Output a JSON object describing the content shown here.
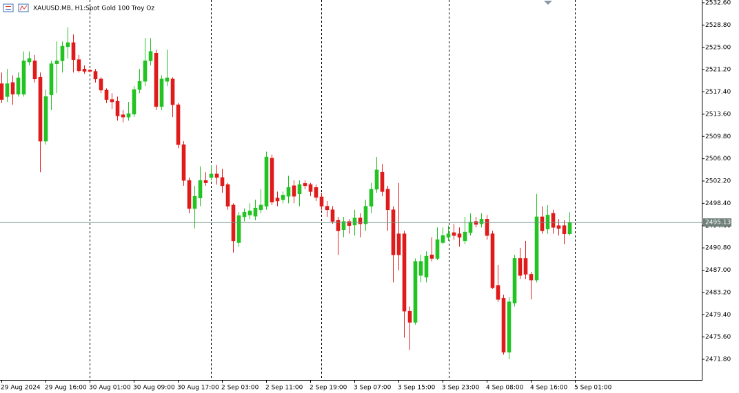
{
  "chart_data": {
    "type": "candlestick",
    "title": "XAUUSD.MB, H1:",
    "subtitle": "Spot Gold 100 Troy Oz",
    "up_color": "#22c322",
    "down_color": "#e01b1b",
    "grid": false,
    "ylim": [
      2468.28,
      2533.07
    ],
    "yticks": [
      {
        "value": 2532.6,
        "label": "2532.60"
      },
      {
        "value": 2528.8,
        "label": "2528.80"
      },
      {
        "value": 2525.0,
        "label": "2525.00"
      },
      {
        "value": 2521.2,
        "label": "2521.20"
      },
      {
        "value": 2517.4,
        "label": "2517.40"
      },
      {
        "value": 2513.6,
        "label": "2513.60"
      },
      {
        "value": 2509.8,
        "label": "2509.80"
      },
      {
        "value": 2506.0,
        "label": "2506.00"
      },
      {
        "value": 2502.2,
        "label": "2502.20"
      },
      {
        "value": 2498.4,
        "label": "2498.40"
      },
      {
        "value": 2494.6,
        "label": "2494.60"
      },
      {
        "value": 2490.8,
        "label": "2490.80"
      },
      {
        "value": 2487.0,
        "label": "2487.00"
      },
      {
        "value": 2483.2,
        "label": "2483.20"
      },
      {
        "value": 2479.4,
        "label": "2479.40"
      },
      {
        "value": 2475.6,
        "label": "2475.60"
      },
      {
        "value": 2471.8,
        "label": "2471.80"
      }
    ],
    "current_price": {
      "value": 2495.13,
      "label": "2495.13"
    },
    "categories": [
      "29 Aug 2024",
      null,
      null,
      null,
      null,
      null,
      null,
      null,
      "29 Aug 16:00",
      null,
      null,
      null,
      null,
      null,
      null,
      null,
      "30 Aug 01:00",
      null,
      null,
      null,
      null,
      null,
      null,
      null,
      "30 Aug 09:00",
      null,
      null,
      null,
      null,
      null,
      null,
      null,
      "30 Aug 17:00",
      null,
      null,
      null,
      null,
      null,
      null,
      null,
      "2 Sep 03:00",
      null,
      null,
      null,
      null,
      null,
      null,
      null,
      "2 Sep 11:00",
      null,
      null,
      null,
      null,
      null,
      null,
      null,
      "2 Sep 19:00",
      null,
      null,
      null,
      null,
      null,
      null,
      null,
      "3 Sep 07:00",
      null,
      null,
      null,
      null,
      null,
      null,
      null,
      "3 Sep 15:00",
      null,
      null,
      null,
      null,
      null,
      null,
      null,
      "3 Sep 23:00",
      null,
      null,
      null,
      null,
      null,
      null,
      null,
      "4 Sep 08:00",
      null,
      null,
      null,
      null,
      null,
      null,
      null,
      "4 Sep 16:00",
      null,
      null,
      null,
      null,
      null,
      null,
      null,
      "5 Sep 01:00"
    ],
    "open": [
      2518.8,
      2516.6,
      2519.0,
      2517.0,
      2517.0,
      2522.5,
      2522.7,
      2519.9,
      2509.0,
      2516.9,
      2522.2,
      2522.7,
      2525.1,
      2525.8,
      2522.9,
      2521.3,
      2521.1,
      2520.9,
      2519.6,
      2517.7,
      2516.1,
      2515.8,
      2513.5,
      2513.1,
      2513.6,
      2517.8,
      2519.2,
      2522.7,
      2524.0,
      2514.9,
      2519.2,
      2519.6,
      2515.2,
      2508.4,
      2502.3,
      2497.5,
      2499.3,
      2502.3,
      2502.8,
      2503.4,
      2502.8,
      2501.6,
      2498.1,
      2491.7,
      2496.1,
      2496.4,
      2496.2,
      2497.3,
      2497.9,
      2506.1,
      2499.3,
      2499.0,
      2499.6,
      2501.4,
      2500.0,
      2501.8,
      2501.6,
      2501.1,
      2499.5,
      2497.9,
      2497.3,
      2495.5,
      2493.9,
      2495.3,
      2494.7,
      2495.9,
      2494.9,
      2497.9,
      2500.8,
      2503.7,
      2500.8,
      2497.3,
      2493.2,
      2493.2,
      2480.0,
      2478.1,
      2486.1,
      2485.8,
      2489.6,
      2489.0,
      2491.7,
      2492.6,
      2493.4,
      2493.2,
      2492.0,
      2493.4,
      2495.3,
      2494.9,
      2495.7,
      2493.2,
      2484.4,
      2482.2,
      2473.0,
      2481.4,
      2489.0,
      2489.0,
      2486.3,
      2485.3,
      2496.1,
      2494.0,
      2496.7,
      2494.6,
      2494.6,
      2493.2,
      null
    ],
    "high": [
      2520.7,
      2521.3,
      2520.2,
      2520.7,
      2524.3,
      2524.3,
      2523.7,
      2520.7,
      2517.8,
      2522.7,
      2526.0,
      2526.0,
      2528.4,
      2527.2,
      2523.7,
      2521.9,
      2521.3,
      2521.3,
      2519.9,
      2518.0,
      2517.2,
      2516.6,
      2514.3,
      2515.7,
      2518.4,
      2521.3,
      2526.6,
      2526.6,
      2524.6,
      2520.2,
      2524.6,
      2519.9,
      2515.5,
      2509.0,
      2502.8,
      2501.4,
      2504.7,
      2503.7,
      2504.9,
      2504.9,
      2504.3,
      2501.9,
      2498.4,
      2496.9,
      2497.5,
      2498.4,
      2499.0,
      2500.8,
      2507.2,
      2506.7,
      2500.4,
      2500.4,
      2503.1,
      2502.3,
      2502.3,
      2502.3,
      2501.9,
      2501.6,
      2500.2,
      2498.8,
      2497.9,
      2496.1,
      2496.1,
      2495.7,
      2497.3,
      2496.7,
      2499.0,
      2501.9,
      2506.3,
      2505.1,
      2501.4,
      2497.9,
      2501.9,
      2493.7,
      2480.8,
      2489.0,
      2489.6,
      2490.2,
      2492.6,
      2494.3,
      2494.3,
      2494.6,
      2494.9,
      2494.3,
      2496.1,
      2496.7,
      2496.1,
      2496.7,
      2496.4,
      2493.7,
      2487.9,
      2482.8,
      2482.4,
      2489.6,
      2490.8,
      2492.0,
      2486.7,
      2500.0,
      2497.9,
      2498.1,
      2497.3,
      2495.7,
      2495.5,
      2496.9,
      null
    ],
    "low": [
      2515.5,
      2515.7,
      2515.2,
      2516.6,
      2516.6,
      2521.9,
      2519.0,
      2503.7,
      2508.4,
      2514.3,
      2517.2,
      2520.7,
      2523.1,
      2520.7,
      2520.7,
      2520.5,
      2520.7,
      2519.0,
      2517.2,
      2515.5,
      2514.5,
      2512.5,
      2512.2,
      2512.5,
      2513.1,
      2517.2,
      2518.4,
      2521.9,
      2514.3,
      2514.3,
      2518.4,
      2513.1,
      2507.8,
      2501.4,
      2496.7,
      2494.1,
      2497.9,
      2501.4,
      2502.3,
      2501.6,
      2500.2,
      2497.3,
      2490.0,
      2491.0,
      2495.3,
      2495.7,
      2495.5,
      2496.7,
      2497.3,
      2498.1,
      2497.9,
      2498.4,
      2498.4,
      2498.4,
      2497.9,
      2500.8,
      2499.6,
      2498.8,
      2497.3,
      2496.1,
      2494.9,
      2489.6,
      2492.6,
      2493.2,
      2492.9,
      2492.6,
      2493.7,
      2496.7,
      2500.2,
      2499.6,
      2493.7,
      2484.9,
      2487.0,
      2475.5,
      2473.4,
      2477.7,
      2484.9,
      2484.9,
      2488.5,
      2488.7,
      2491.4,
      2492.0,
      2492.2,
      2491.0,
      2491.4,
      2492.9,
      2494.3,
      2494.3,
      2492.2,
      2483.8,
      2481.6,
      2472.6,
      2471.8,
      2480.8,
      2485.5,
      2485.5,
      2482.0,
      2484.9,
      2493.2,
      2493.2,
      2493.2,
      2492.9,
      2491.4,
      2492.9,
      null
    ],
    "close": [
      2516.1,
      2518.8,
      2517.0,
      2519.8,
      2522.7,
      2523.1,
      2519.6,
      2509.0,
      2516.6,
      2522.2,
      2522.7,
      2525.2,
      2525.8,
      2522.9,
      2521.0,
      2520.9,
      2520.9,
      2519.6,
      2517.7,
      2516.1,
      2515.7,
      2513.3,
      2513.1,
      2513.7,
      2517.8,
      2519.2,
      2522.7,
      2524.3,
      2514.9,
      2519.6,
      2519.8,
      2515.2,
      2508.4,
      2502.3,
      2497.5,
      2499.6,
      2502.3,
      2501.9,
      2503.4,
      2502.8,
      2501.4,
      2497.9,
      2492.0,
      2496.3,
      2496.9,
      2497.1,
      2497.6,
      2498.1,
      2506.3,
      2498.6,
      2498.8,
      2499.8,
      2501.1,
      2499.6,
      2501.6,
      2501.4,
      2500.4,
      2499.4,
      2497.9,
      2497.3,
      2495.3,
      2493.7,
      2495.3,
      2494.6,
      2495.9,
      2494.9,
      2497.9,
      2500.8,
      2504.1,
      2500.4,
      2497.3,
      2489.6,
      2489.6,
      2480.0,
      2478.1,
      2488.5,
      2488.5,
      2489.4,
      2489.0,
      2492.2,
      2492.9,
      2493.2,
      2492.9,
      2492.6,
      2493.5,
      2495.2,
      2494.8,
      2495.7,
      2492.9,
      2484.0,
      2482.0,
      2473.0,
      2481.6,
      2489.0,
      2486.1,
      2486.3,
      2485.3,
      2496.1,
      2493.7,
      2496.4,
      2494.3,
      2494.1,
      2493.2,
      2495.1,
      null
    ]
  }
}
